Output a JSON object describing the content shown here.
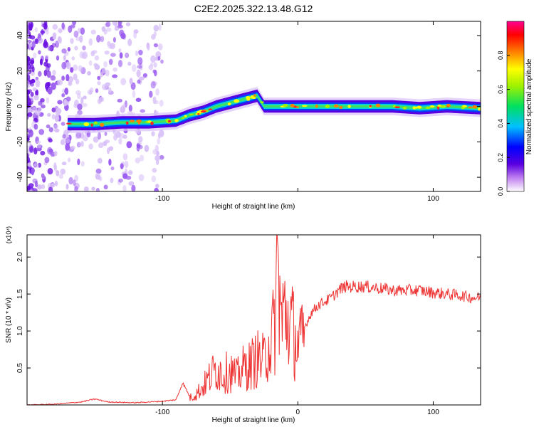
{
  "title": "C2E2.2025.322.13.48.G12",
  "chart_data": [
    {
      "type": "heatmap",
      "xlabel": "Height of straight line (km)",
      "ylabel": "Frequency (Hz)",
      "xlim": [
        -200,
        135
      ],
      "ylim": [
        -48,
        48
      ],
      "xticks": [
        -100,
        0,
        100
      ],
      "xtick_labels": [
        "-100",
        "",
        "100"
      ],
      "yticks": [
        -40,
        -20,
        0,
        20,
        40
      ],
      "ytick_labels": [
        "-40",
        "-20",
        "0",
        "20",
        "40"
      ],
      "colorbar": {
        "label": "Normalized spectral amplitude",
        "range": [
          0,
          1
        ],
        "ticks": [
          0.0,
          0.2,
          0.4,
          0.6,
          0.8
        ],
        "tick_labels": [
          "0.0",
          "0.2",
          "0.4",
          "0.6",
          "0.8"
        ]
      },
      "ridge": {
        "x": [
          -170,
          -150,
          -130,
          -110,
          -90,
          -80,
          -70,
          -60,
          -50,
          -40,
          -30,
          -25,
          -20,
          -10,
          0,
          10,
          30,
          50,
          70,
          90,
          110,
          135
        ],
        "freq": [
          -10,
          -10,
          -9,
          -9,
          -8,
          -5,
          -3,
          0,
          2,
          4,
          6,
          0,
          0,
          0,
          0,
          0,
          0,
          0,
          0,
          -1,
          0,
          -1
        ]
      }
    },
    {
      "type": "line",
      "xlabel": "Height of straight line (km)",
      "ylabel": "SNR (10 * v/v)",
      "y_multiplier": "(x10⁴)",
      "xlim": [
        -200,
        135
      ],
      "ylim": [
        0,
        2.3
      ],
      "xticks": [
        -100,
        0,
        100
      ],
      "xtick_labels": [
        "-100",
        "0",
        "100"
      ],
      "yticks": [
        0.5,
        1.0,
        1.5,
        2.0
      ],
      "ytick_labels": [
        "0.5",
        "1.0",
        "1.5",
        "2.0"
      ],
      "series": [
        {
          "color": "#ee3333",
          "x": [
            -200,
            -180,
            -160,
            -150,
            -140,
            -120,
            -100,
            -90,
            -85,
            -80,
            -75,
            -70,
            -65,
            -60,
            -55,
            -50,
            -45,
            -40,
            -35,
            -30,
            -25,
            -22,
            -20,
            -17,
            -15,
            -12,
            -10,
            -5,
            0,
            5,
            10,
            15,
            20,
            25,
            30,
            35,
            40,
            50,
            60,
            70,
            80,
            90,
            100,
            110,
            120,
            130,
            135
          ],
          "y": [
            0.0,
            0.01,
            0.04,
            0.08,
            0.04,
            0.03,
            0.05,
            0.07,
            0.3,
            0.12,
            0.18,
            0.3,
            0.45,
            0.6,
            0.5,
            0.55,
            0.45,
            0.6,
            0.65,
            0.75,
            0.7,
            1.0,
            1.0,
            1.3,
            2.3,
            1.3,
            1.5,
            1.3,
            0.95,
            1.05,
            1.25,
            1.35,
            1.4,
            1.45,
            1.55,
            1.6,
            1.6,
            1.6,
            1.58,
            1.55,
            1.55,
            1.55,
            1.52,
            1.5,
            1.48,
            1.45,
            1.45
          ]
        }
      ]
    }
  ]
}
